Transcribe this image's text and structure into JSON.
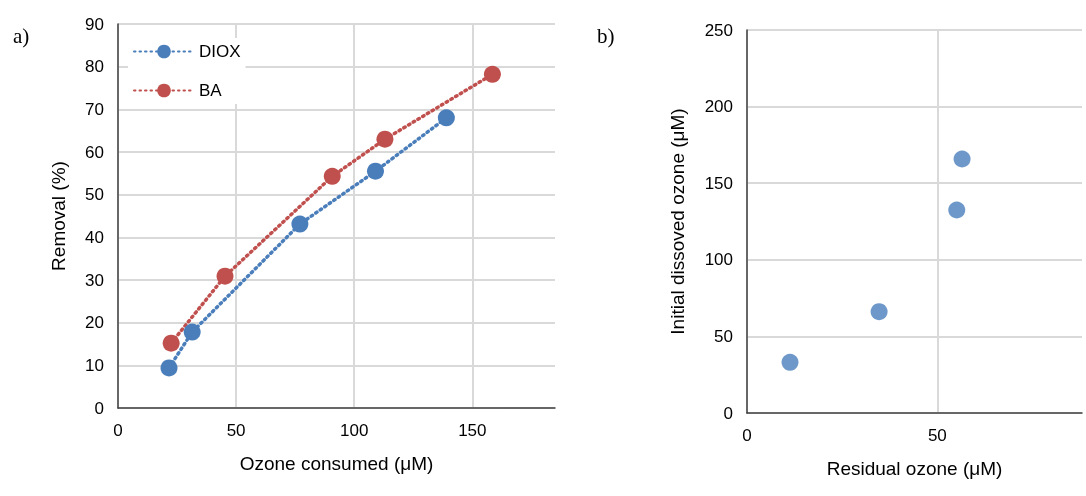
{
  "chart_data": [
    {
      "type": "line",
      "title": "a)",
      "xlabel": "Ozone consumed (μM)",
      "ylabel": "Removal (%)",
      "xlim": [
        0,
        185
      ],
      "xticks": [
        0,
        50,
        100,
        150
      ],
      "ylim": [
        0,
        90
      ],
      "yticks": [
        0,
        10,
        20,
        30,
        40,
        50,
        60,
        70,
        80,
        90
      ],
      "grid": true,
      "legend": "top left",
      "marker": "circle",
      "line_style": "dotted",
      "series": [
        {
          "name": "DIOX",
          "color": "#4a7ebb",
          "x": [
            21.6,
            31.4,
            77,
            109,
            139
          ],
          "values": [
            9.4,
            17.8,
            43.1,
            55.5,
            68
          ]
        },
        {
          "name": "BA",
          "color": "#c0504d",
          "x": [
            22.5,
            45.3,
            90.7,
            113,
            158.5
          ],
          "values": [
            15.2,
            30.9,
            54.3,
            63,
            78.2
          ]
        }
      ]
    },
    {
      "type": "scatter",
      "title": "b)",
      "xlabel": "Residual ozone (μM)",
      "ylabel": "Initial dissoved ozone (μM)",
      "xlim": [
        0,
        88
      ],
      "xticks": [
        0,
        50
      ],
      "ylim": [
        0,
        250
      ],
      "yticks": [
        0,
        50,
        100,
        150,
        200,
        250
      ],
      "grid": true,
      "marker": "circle",
      "series": [
        {
          "color": "#4a7ebb",
          "x": [
            11.3,
            34.7,
            55.1,
            56.5
          ],
          "values": [
            33.1,
            66.1,
            132.5,
            165.8
          ]
        }
      ]
    }
  ]
}
